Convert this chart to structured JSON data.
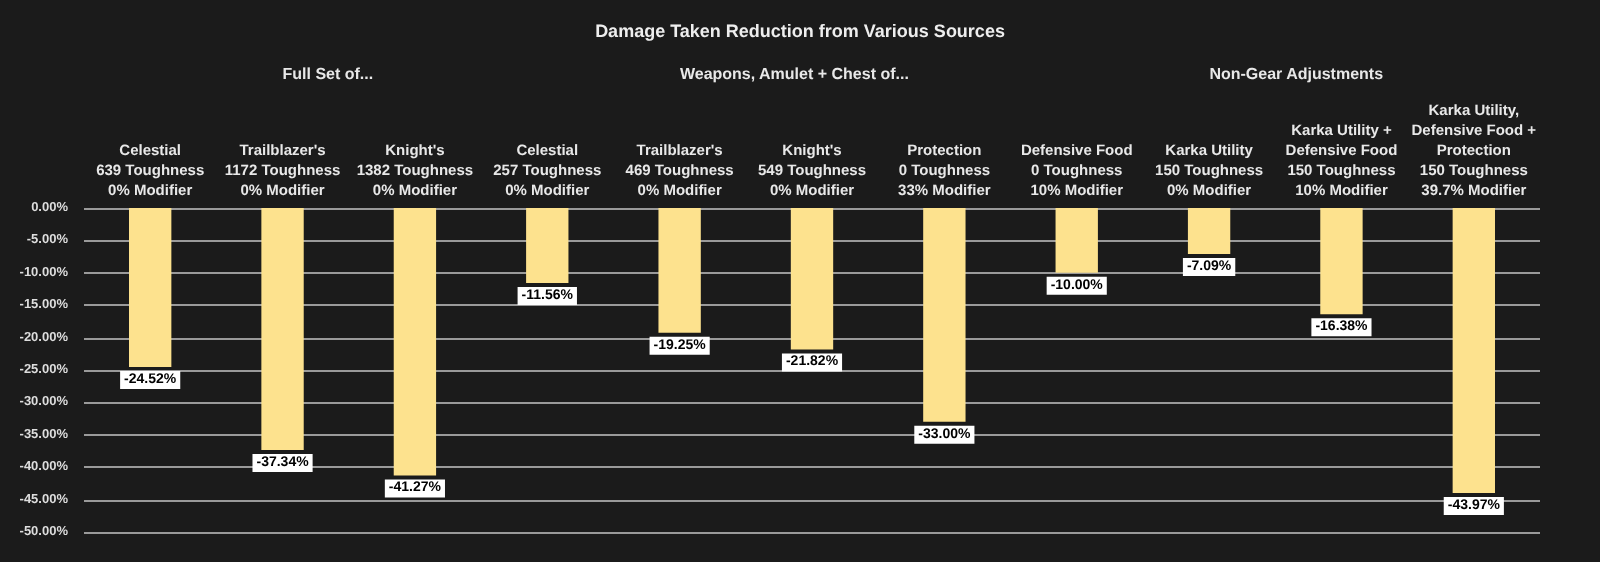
{
  "chart_data": {
    "type": "bar",
    "title": "Damage Taken Reduction from Various Sources",
    "annotations": [
      "Full Set of...",
      "Weapons, Amulet + Chest of...",
      "Non-Gear Adjustments"
    ],
    "categories": [
      "Celestial\n639 Toughness\n0% Modifier",
      "Trailblazer's\n1172 Toughness\n0% Modifier",
      "Knight's\n1382 Toughness\n0% Modifier",
      "Celestial\n257 Toughness\n0% Modifier",
      "Trailblazer's\n469 Toughness\n0% Modifier",
      "Knight's\n549 Toughness\n0% Modifier",
      "Protection\n0 Toughness\n33% Modifier",
      "Defensive Food\n0 Toughness\n10% Modifier",
      "Karka Utility\n150 Toughness\n0% Modifier",
      "Karka Utility +\nDefensive Food\n150 Toughness\n10% Modifier",
      "Karka Utility,\nDefensive Food +\nProtection\n150 Toughness\n39.7% Modifier"
    ],
    "values": [
      -24.52,
      -37.34,
      -41.27,
      -11.56,
      -19.25,
      -21.82,
      -33.0,
      -10.0,
      -7.09,
      -16.38,
      -43.97
    ],
    "value_labels": [
      "-24.52%",
      "-37.34%",
      "-41.27%",
      "-11.56%",
      "-19.25%",
      "-21.82%",
      "-33.00%",
      "-10.00%",
      "-7.09%",
      "-16.38%",
      "-43.97%"
    ],
    "color": "#fde28e",
    "ylim": [
      -50,
      0
    ],
    "yticks": [
      {
        "value": 0,
        "label": "0.00%"
      },
      {
        "value": -5,
        "label": "-5.00%"
      },
      {
        "value": -10,
        "label": "-10.00%"
      },
      {
        "value": -15,
        "label": "-15.00%"
      },
      {
        "value": -20,
        "label": "-20.00%"
      },
      {
        "value": -25,
        "label": "-25.00%"
      },
      {
        "value": -30,
        "label": "-30.00%"
      },
      {
        "value": -35,
        "label": "-35.00%"
      },
      {
        "value": -40,
        "label": "-40.00%"
      },
      {
        "value": -45,
        "label": "-45.00%"
      },
      {
        "value": -50,
        "label": "-50.00%"
      }
    ],
    "grid": "y"
  }
}
